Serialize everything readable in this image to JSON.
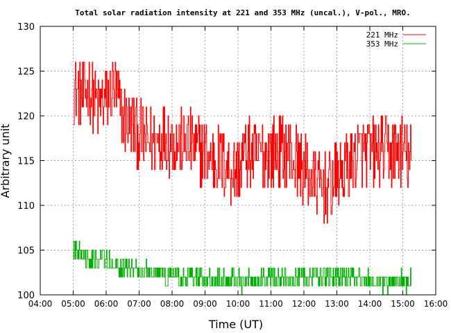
{
  "chart_data": {
    "type": "line",
    "title": "Total solar radiation intensity at 221 and 353 MHz (uncal.), V-pol., MRO.",
    "xlabel": "Time (UT)",
    "ylabel": "Arbitrary unit",
    "xlim": [
      4,
      16
    ],
    "ylim": [
      100,
      130
    ],
    "x_ticks": [
      "04:00",
      "05:00",
      "06:00",
      "07:00",
      "08:00",
      "09:00",
      "10:00",
      "11:00",
      "12:00",
      "13:00",
      "14:00",
      "15:00",
      "16:00"
    ],
    "y_ticks": [
      "100",
      "105",
      "110",
      "115",
      "120",
      "125",
      "130"
    ],
    "grid": true,
    "legend_position": "top-right",
    "series": [
      {
        "name": "221 MHz",
        "color": "#ff0000",
        "points": [
          [
            5.0,
            123
          ],
          [
            5.25,
            122
          ],
          [
            5.5,
            123
          ],
          [
            5.75,
            121
          ],
          [
            6.0,
            122
          ],
          [
            6.25,
            123
          ],
          [
            6.5,
            120
          ],
          [
            6.75,
            119
          ],
          [
            7.0,
            118
          ],
          [
            7.25,
            117
          ],
          [
            7.5,
            117
          ],
          [
            7.75,
            118
          ],
          [
            8.0,
            117
          ],
          [
            8.25,
            117
          ],
          [
            8.5,
            117
          ],
          [
            8.75,
            116
          ],
          [
            9.0,
            116
          ],
          [
            9.25,
            115
          ],
          [
            9.5,
            115
          ],
          [
            9.75,
            114
          ],
          [
            10.0,
            114
          ],
          [
            10.25,
            116
          ],
          [
            10.5,
            115
          ],
          [
            10.75,
            116
          ],
          [
            11.0,
            116
          ],
          [
            11.25,
            116
          ],
          [
            11.5,
            116
          ],
          [
            11.75,
            115
          ],
          [
            12.0,
            114
          ],
          [
            12.25,
            113
          ],
          [
            12.5,
            112
          ],
          [
            12.75,
            112
          ],
          [
            13.0,
            113
          ],
          [
            13.25,
            114
          ],
          [
            13.5,
            115
          ],
          [
            13.75,
            116
          ],
          [
            14.0,
            116
          ],
          [
            14.25,
            116
          ],
          [
            14.5,
            116
          ],
          [
            14.75,
            116
          ],
          [
            15.0,
            116
          ],
          [
            15.25,
            115
          ]
        ]
      },
      {
        "name": "353 MHz",
        "color": "#00b000",
        "points": [
          [
            5.0,
            105
          ],
          [
            5.25,
            104.5
          ],
          [
            5.5,
            104
          ],
          [
            5.75,
            104
          ],
          [
            6.0,
            104
          ],
          [
            6.25,
            103.5
          ],
          [
            6.5,
            103
          ],
          [
            6.75,
            103
          ],
          [
            7.0,
            102.8
          ],
          [
            7.25,
            102.5
          ],
          [
            7.5,
            102.5
          ],
          [
            7.75,
            102
          ],
          [
            8.0,
            102
          ],
          [
            8.25,
            101.8
          ],
          [
            8.5,
            101.8
          ],
          [
            8.75,
            101.8
          ],
          [
            9.0,
            101.8
          ],
          [
            9.25,
            101.8
          ],
          [
            9.5,
            101.8
          ],
          [
            9.75,
            101.8
          ],
          [
            10.0,
            101.5
          ],
          [
            10.25,
            101.5
          ],
          [
            10.5,
            101.5
          ],
          [
            10.75,
            101.8
          ],
          [
            11.0,
            101.8
          ],
          [
            11.25,
            102
          ],
          [
            11.5,
            102
          ],
          [
            11.75,
            102
          ],
          [
            12.0,
            102
          ],
          [
            12.25,
            102.3
          ],
          [
            12.5,
            102.2
          ],
          [
            12.75,
            102.2
          ],
          [
            13.0,
            102.2
          ],
          [
            13.25,
            102
          ],
          [
            13.5,
            102
          ],
          [
            13.75,
            102
          ],
          [
            14.0,
            101.8
          ],
          [
            14.25,
            101.6
          ],
          [
            14.5,
            101.5
          ],
          [
            14.75,
            101.5
          ],
          [
            15.0,
            101.5
          ],
          [
            15.25,
            101.5
          ]
        ]
      }
    ]
  }
}
